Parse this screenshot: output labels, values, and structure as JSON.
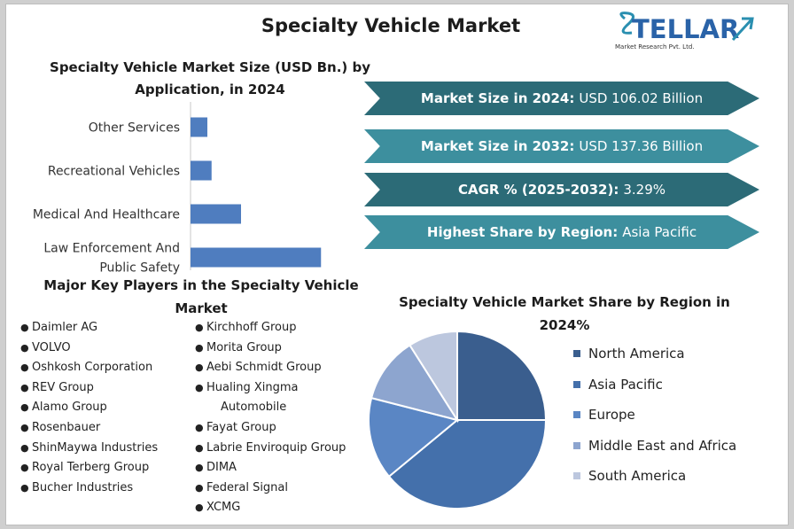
{
  "title": "Specialty Vehicle Market",
  "logo": {
    "name": "STELLAR",
    "tagline": "Market Research Pvt. Ltd.",
    "colors": {
      "blue": "#2a63a8",
      "teal": "#2a8fb0"
    }
  },
  "colors": {
    "bar": "#4f7dbf",
    "banner_dark": "#2c6b77",
    "banner_light": "#3d8f9e"
  },
  "banners": [
    {
      "label": "Market Size in 2024:",
      "value": "USD 106.02 Billion",
      "style": "dark"
    },
    {
      "label": "Market Size in 2032:",
      "value": "USD 137.36 Billion",
      "style": "light"
    },
    {
      "label": "CAGR % (2025-2032):",
      "value": "3.29%",
      "style": "dark"
    },
    {
      "label": "Highest Share by Region:",
      "value": "Asia Pacific",
      "style": "light"
    }
  ],
  "players": {
    "title": "Major Key Players in the Specialty Vehicle Market",
    "left": [
      "Daimler AG",
      "VOLVO",
      "Oshkosh Corporation",
      "REV Group",
      "Alamo Group",
      "Rosenbauer",
      "ShinMaywa Industries",
      "Royal Terberg Group",
      "Bucher Industries"
    ],
    "right": [
      "Kirchhoff Group",
      "Morita Group",
      "Aebi Schmidt Group",
      "Hualing Xingma Automobile",
      "Fayat Group",
      "Labrie Enviroquip Group",
      "DIMA",
      "Federal Signal",
      "XCMG"
    ]
  },
  "chart_data": [
    {
      "type": "bar",
      "orientation": "horizontal",
      "title": "Specialty Vehicle Market Size (USD Bn.) by Application, in 2024",
      "categories": [
        "Other Services",
        "Recreational Vehicles",
        "Medical And Healthcare",
        "Law Enforcement And Public Safety"
      ],
      "category_lines": [
        [
          "Other Services"
        ],
        [
          "Recreational Vehicles"
        ],
        [
          "Medical And Healthcare"
        ],
        [
          "Law Enforcement And",
          "Public Safety"
        ]
      ],
      "values": [
        4,
        5,
        12,
        31
      ],
      "xlim": [
        0,
        40
      ],
      "grid": false
    },
    {
      "type": "pie",
      "title": "Specialty Vehicle Market Share by Region in 2024%",
      "categories": [
        "North America",
        "Asia Pacific",
        "Europe",
        "Middle East and Africa",
        "South America"
      ],
      "values": [
        25,
        39,
        15,
        12,
        9
      ],
      "colors": [
        "#3a5e8e",
        "#4470ab",
        "#5a86c4",
        "#8da5cf",
        "#bcc7de"
      ],
      "legend": "right"
    }
  ]
}
